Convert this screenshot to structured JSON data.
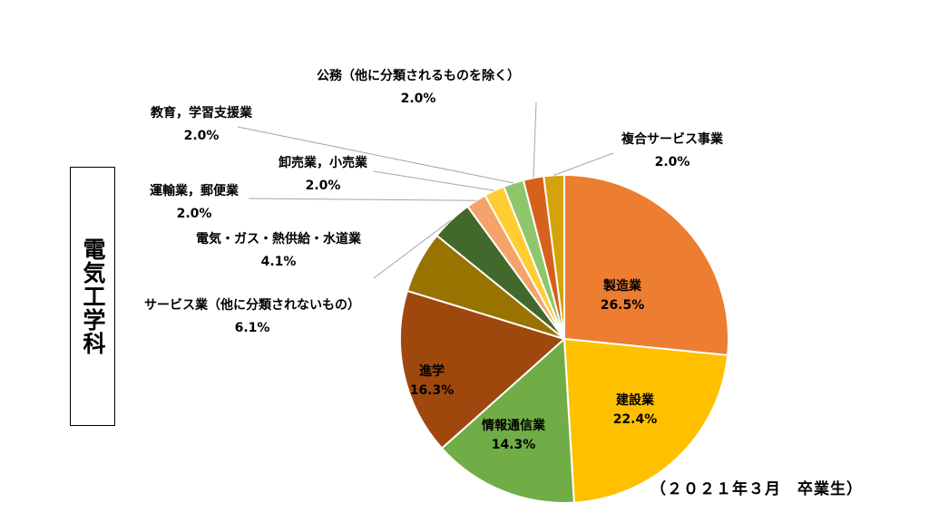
{
  "side_title": "電気工学科",
  "footnote": "（２０２１年３月　卒業生）",
  "chart_data": {
    "type": "pie",
    "start_angle_deg": 0,
    "direction": "clockwise",
    "slices": [
      {
        "label": "製造業",
        "value": 26.5,
        "display": "26.5%",
        "color": "#ED7D31"
      },
      {
        "label": "建設業",
        "value": 22.4,
        "display": "22.4%",
        "color": "#FFC000"
      },
      {
        "label": "情報通信業",
        "value": 14.3,
        "display": "14.3%",
        "color": "#70AD47"
      },
      {
        "label": "進学",
        "value": 16.3,
        "display": "16.3%",
        "color": "#9E480E"
      },
      {
        "label": "サービス業（他に分類されないもの）",
        "value": 6.1,
        "display": "6.1%",
        "color": "#997300"
      },
      {
        "label": "電気・ガス・熱供給・水道業",
        "value": 4.1,
        "display": "4.1%",
        "color": "#43682B"
      },
      {
        "label": "運輸業，郵便業",
        "value": 2.0,
        "display": "2.0%",
        "color": "#F4A46B"
      },
      {
        "label": "卸売業，小売業",
        "value": 2.0,
        "display": "2.0%",
        "color": "#FFCD33"
      },
      {
        "label": "教育，学習支援業",
        "value": 2.0,
        "display": "2.0%",
        "color": "#8FC66C"
      },
      {
        "label": "公務（他に分類されるものを除く）",
        "value": 2.0,
        "display": "2.0%",
        "color": "#D7601C"
      },
      {
        "label": "複合サービス事業",
        "value": 2.0,
        "display": "2.0%",
        "color": "#D4A20A"
      }
    ]
  }
}
